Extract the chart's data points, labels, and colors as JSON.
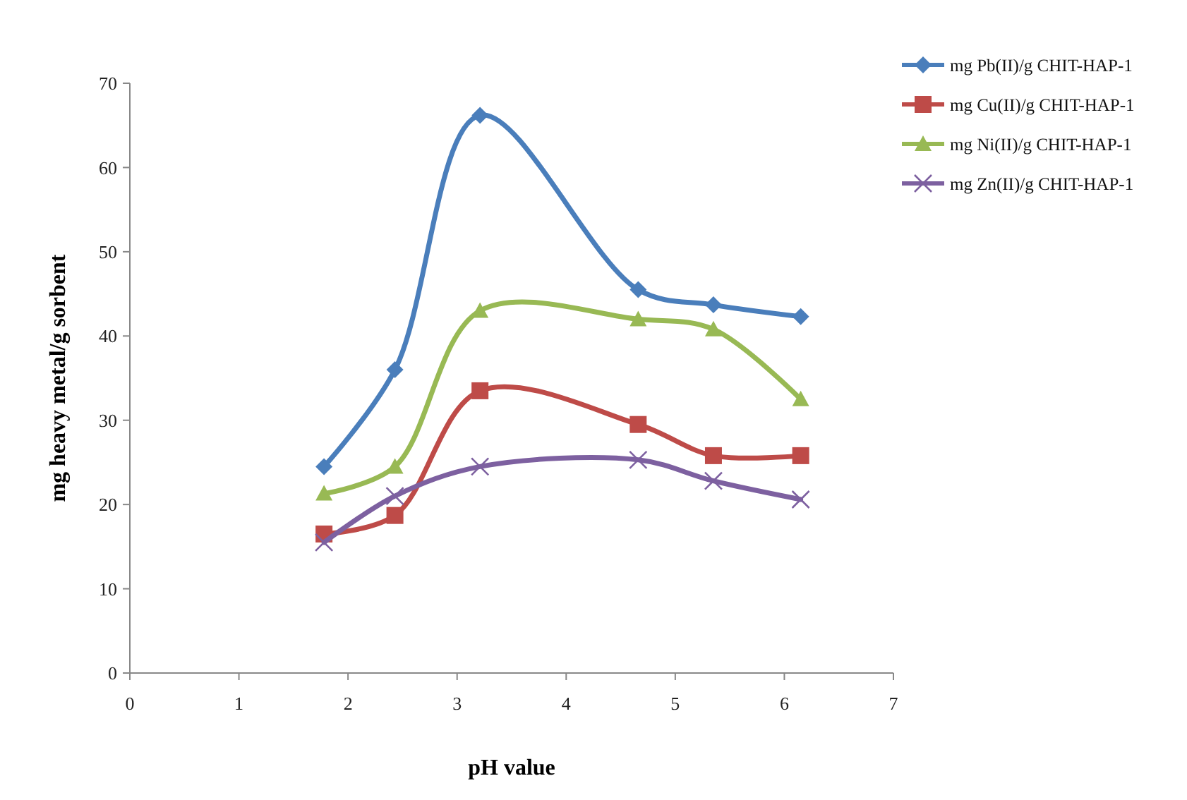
{
  "chart_data": {
    "type": "line",
    "xlabel": "pH value",
    "ylabel": "mg heavy metal/g sorbent",
    "x": [
      1.78,
      2.43,
      3.21,
      4.66,
      5.35,
      6.15
    ],
    "xlim": [
      0,
      7
    ],
    "xticks": [
      0,
      1,
      2,
      3,
      4,
      5,
      6,
      7
    ],
    "ylim": [
      0,
      70
    ],
    "yticks": [
      0,
      10,
      20,
      30,
      40,
      50,
      60,
      70
    ],
    "grid": false,
    "legend": "top right",
    "line_style": "solid",
    "series": [
      {
        "name": "mg Pb(II)/g CHIT-HAP-1",
        "color": "#4a7ebb",
        "marker": "diamond",
        "values": [
          24.5,
          36,
          66.2,
          45.5,
          43.7,
          42.3
        ]
      },
      {
        "name": "mg Cu(II)/g CHIT-HAP-1",
        "color": "#be4b48",
        "marker": "square",
        "values": [
          16.5,
          18.7,
          33.5,
          29.5,
          25.8,
          25.8
        ]
      },
      {
        "name": "mg Ni(II)/g CHIT-HAP-1",
        "color": "#98b954",
        "marker": "triangle",
        "values": [
          21.3,
          24.5,
          43,
          42,
          40.8,
          32.5
        ]
      },
      {
        "name": "mg Zn(II)/g CHIT-HAP-1",
        "color": "#7d60a0",
        "marker": "cross",
        "values": [
          15.5,
          21,
          24.5,
          25.3,
          22.8,
          20.6
        ]
      }
    ]
  }
}
